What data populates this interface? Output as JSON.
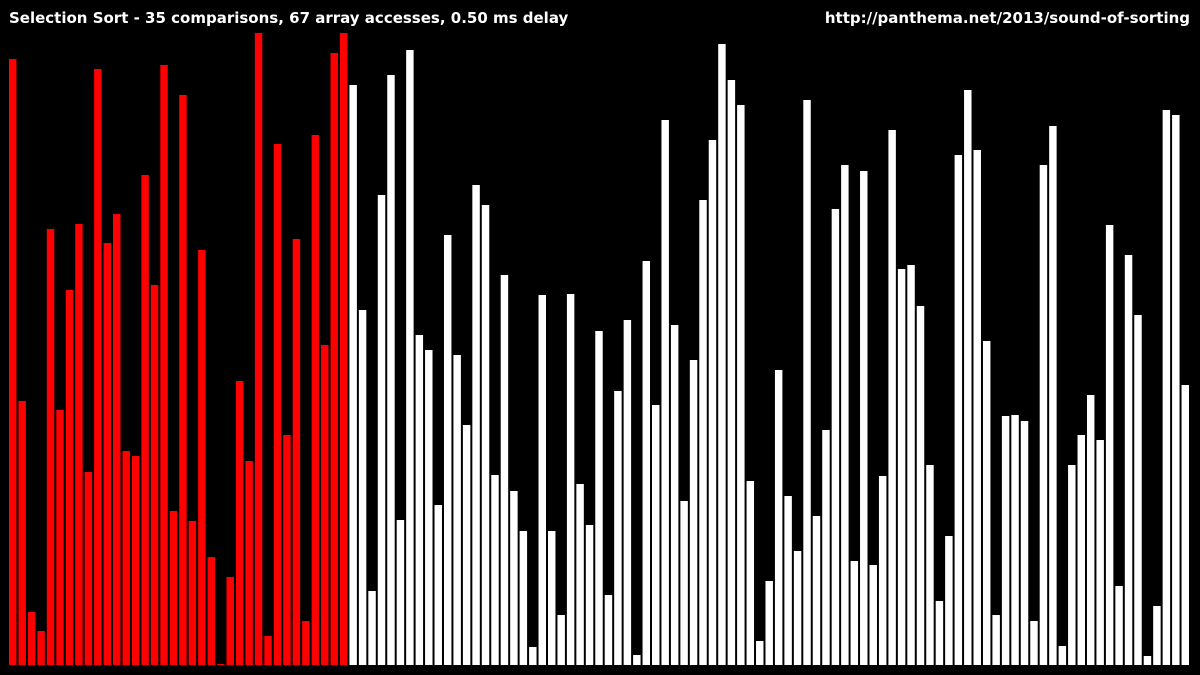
{
  "header": {
    "status_text": "Selection Sort - 35 comparisons, 67 array accesses, 0.50 ms delay",
    "source_url": "http://panthema.net/2013/sound-of-sorting"
  },
  "visualization": {
    "algorithm": "Selection Sort",
    "comparisons": 35,
    "array_accesses": 67,
    "delay_ms": 0.5,
    "background_color": "#000000",
    "active_color": "#ff0000",
    "inactive_color": "#ffffff",
    "active_count": 36,
    "values": [
      606,
      264,
      53,
      34,
      436,
      255,
      375,
      441,
      193,
      596,
      422,
      451,
      214,
      209,
      490,
      380,
      600,
      154,
      570,
      144,
      415,
      108,
      1,
      88,
      284,
      204,
      632,
      29,
      521,
      230,
      426,
      44,
      530,
      320,
      612,
      632,
      580,
      355,
      74,
      470,
      590,
      145,
      615,
      330,
      315,
      160,
      430,
      310,
      240,
      480,
      460,
      190,
      390,
      174,
      134,
      18,
      370,
      134,
      50,
      371,
      181,
      140,
      334,
      70,
      274,
      345,
      10,
      404,
      260,
      545,
      340,
      164,
      305,
      465,
      525,
      621,
      585,
      560,
      184,
      24,
      84,
      295,
      169,
      114,
      565,
      149,
      235,
      456,
      500,
      104,
      494,
      100,
      189,
      535,
      396,
      400,
      359,
      200,
      64,
      129,
      510,
      575,
      515,
      324,
      50,
      249,
      250,
      244,
      44,
      500,
      539,
      19,
      200,
      230,
      270,
      225,
      440,
      79,
      410,
      350,
      9,
      59,
      555,
      550,
      280
    ]
  }
}
